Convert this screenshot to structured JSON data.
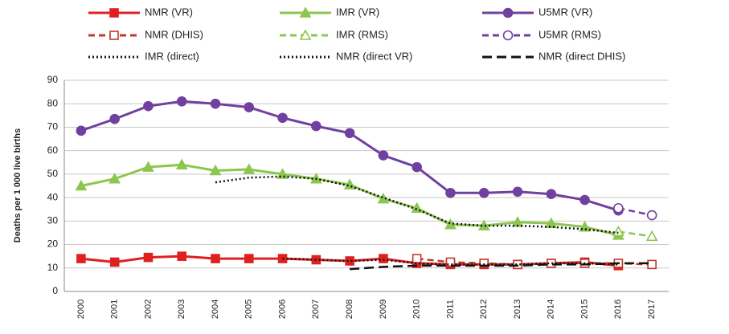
{
  "chart_data": {
    "type": "line",
    "y_label": "Deaths per 1 000 live births",
    "categories": [
      "2000",
      "2001",
      "2002",
      "2003",
      "2004",
      "2005",
      "2006",
      "2007",
      "2008",
      "2009",
      "2010",
      "2011",
      "2012",
      "2013",
      "2014",
      "2015",
      "2016",
      "2017"
    ],
    "ylim": [
      0,
      90
    ],
    "yticks": [
      0,
      10,
      20,
      30,
      40,
      50,
      60,
      70,
      80,
      90
    ],
    "grid": true,
    "legend": "top",
    "series": [
      {
        "name": "NMR (VR)",
        "color": "#e0201f",
        "dash": "solid",
        "marker": "square",
        "filled": true,
        "values": [
          14,
          12.5,
          14.5,
          15,
          14,
          14,
          14,
          13.5,
          13,
          14,
          12,
          11.5,
          11.5,
          11.5,
          12,
          12.5,
          11,
          null
        ]
      },
      {
        "name": "IMR (VR)",
        "color": "#8dc64f",
        "dash": "solid",
        "marker": "triangle",
        "filled": true,
        "values": [
          45,
          48,
          53,
          54,
          51.5,
          52,
          50,
          48,
          45.5,
          39.5,
          35.5,
          28.5,
          28,
          29.5,
          29,
          27.5,
          24,
          null
        ]
      },
      {
        "name": "U5MR (VR)",
        "color": "#7040a0",
        "dash": "solid",
        "marker": "circle",
        "filled": true,
        "values": [
          68.5,
          73.5,
          79,
          81,
          80,
          78.5,
          74,
          70.5,
          67.5,
          58,
          53,
          42,
          42,
          42.5,
          41.5,
          39,
          34.5,
          null
        ]
      },
      {
        "name": "NMR (DHIS)",
        "color": "#c0392b",
        "dash": "dashed",
        "marker": "square",
        "filled": false,
        "values": [
          null,
          null,
          null,
          null,
          null,
          null,
          null,
          null,
          null,
          null,
          14,
          12.5,
          12,
          11.5,
          12,
          12,
          12,
          11.5
        ]
      },
      {
        "name": "IMR (RMS)",
        "color": "#8dc64f",
        "dash": "dashed",
        "marker": "triangle",
        "filled": false,
        "values": [
          null,
          null,
          null,
          null,
          null,
          null,
          null,
          null,
          null,
          null,
          null,
          null,
          null,
          null,
          null,
          null,
          25.5,
          23.5
        ]
      },
      {
        "name": "U5MR (RMS)",
        "color": "#7040a0",
        "dash": "dashed",
        "marker": "circle",
        "filled": false,
        "values": [
          null,
          null,
          null,
          null,
          null,
          null,
          null,
          null,
          null,
          null,
          null,
          null,
          null,
          null,
          null,
          null,
          35.5,
          32.5
        ]
      },
      {
        "name": "IMR (direct)",
        "color": "#111111",
        "dash": "dotted",
        "marker": "none",
        "filled": false,
        "values": [
          null,
          null,
          null,
          null,
          46.5,
          48.5,
          49,
          48,
          45,
          40,
          35,
          29,
          28,
          28,
          27.5,
          26.5,
          25,
          null
        ]
      },
      {
        "name": "NMR (direct VR)",
        "color": "#111111",
        "dash": "dotted",
        "marker": "none",
        "filled": false,
        "values": [
          null,
          null,
          null,
          null,
          null,
          null,
          14,
          13.5,
          13,
          13.5,
          12,
          11.5,
          11.5,
          11.5,
          12,
          12,
          11.5,
          null
        ]
      },
      {
        "name": "NMR (direct DHIS)",
        "color": "#111111",
        "dash": "longdash",
        "marker": "none",
        "filled": false,
        "values": [
          null,
          null,
          null,
          null,
          null,
          null,
          null,
          null,
          9.5,
          10.5,
          11,
          11,
          11,
          11,
          11.5,
          11.5,
          12,
          12
        ]
      }
    ]
  }
}
